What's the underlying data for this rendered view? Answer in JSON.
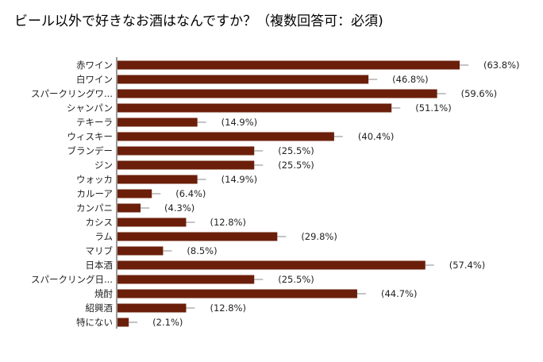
{
  "chart_data": {
    "type": "bar",
    "orientation": "horizontal",
    "title": "ビール以外で好きなお酒はなんですか？（複数回答可：必須)",
    "xlabel": "",
    "ylabel": "",
    "xlim": [
      0,
      64
    ],
    "grid": false,
    "legend": "none",
    "bar_color": "#6b1f0a",
    "error_bar_color": "#888888",
    "categories": [
      "赤ワイン",
      "白ワイン",
      "スパークリングワ...",
      "シャンパン",
      "テキーラ",
      "ウィスキー",
      "ブランデー",
      "ジン",
      "ウォッカ",
      "カルーア",
      "カンパニ",
      "カシス",
      "ラム",
      "マリブ",
      "日本酒",
      "スパークリング日...",
      "焼酎",
      "紹興酒",
      "特にない"
    ],
    "values": [
      63.8,
      46.8,
      59.6,
      51.1,
      14.9,
      40.4,
      25.5,
      25.5,
      14.9,
      6.4,
      4.3,
      12.8,
      29.8,
      8.5,
      57.4,
      25.5,
      44.7,
      12.8,
      2.1
    ],
    "value_labels": [
      "(63.8%)",
      "(46.8%)",
      "(59.6%)",
      "(51.1%)",
      "(14.9%)",
      "(40.4%)",
      "(25.5%)",
      "(25.5%)",
      "(14.9%)",
      "(6.4%)",
      "(4.3%)",
      "(12.8%)",
      "(29.8%)",
      "(8.5%)",
      "(57.4%)",
      "(25.5%)",
      "(44.7%)",
      "(12.8%)",
      "(2.1%)"
    ]
  }
}
